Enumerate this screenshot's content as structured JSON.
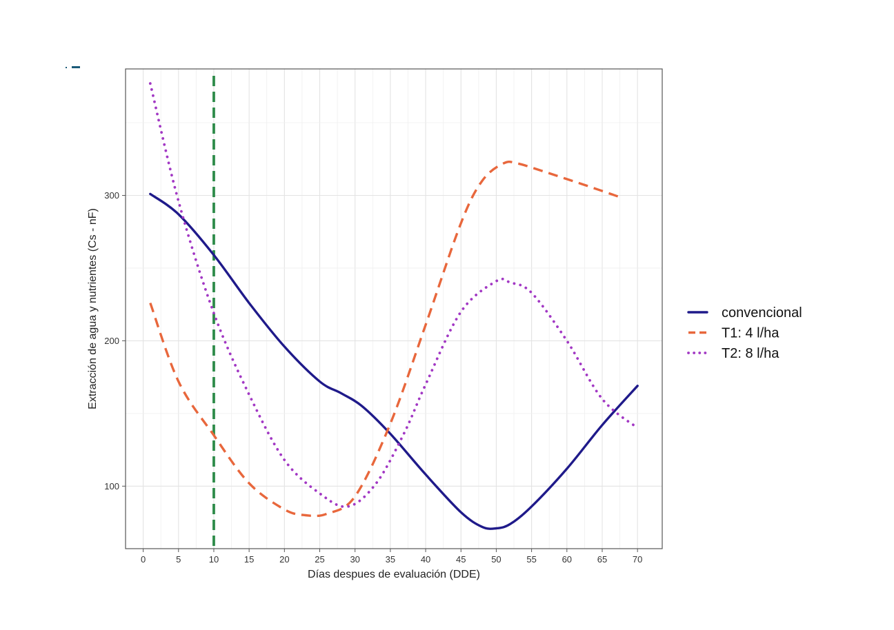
{
  "chart_data": {
    "type": "line",
    "title": "",
    "xlabel": "Días despues de evaluación (DDE)",
    "ylabel": "Extracción de agua y nutrientes (Cs - nF)",
    "xlim": [
      -2.5,
      73.5
    ],
    "ylim": [
      57,
      387
    ],
    "x_ticks": [
      0,
      5,
      10,
      15,
      20,
      25,
      30,
      35,
      40,
      45,
      50,
      55,
      60,
      65,
      70
    ],
    "y_ticks": [
      100,
      200,
      300
    ],
    "grid": true,
    "legend_position": "right",
    "vline": {
      "x": 10,
      "color": "#2e8b4a",
      "style": "dashed"
    },
    "series": [
      {
        "name": "convencional",
        "color": "#1f1a8a",
        "style": "solid",
        "points": [
          [
            1,
            301
          ],
          [
            5,
            287
          ],
          [
            10,
            259
          ],
          [
            15,
            226
          ],
          [
            20,
            196
          ],
          [
            25,
            172
          ],
          [
            28,
            164
          ],
          [
            31,
            155
          ],
          [
            35,
            136
          ],
          [
            40,
            108
          ],
          [
            45,
            82
          ],
          [
            48,
            72
          ],
          [
            50,
            71
          ],
          [
            52,
            74
          ],
          [
            55,
            86
          ],
          [
            60,
            112
          ],
          [
            65,
            142
          ],
          [
            70,
            169
          ]
        ]
      },
      {
        "name": "T1: 4 l/ha",
        "color": "#e8673c",
        "style": "dashed",
        "points": [
          [
            1,
            226
          ],
          [
            5,
            172
          ],
          [
            10,
            135
          ],
          [
            15,
            102
          ],
          [
            20,
            84
          ],
          [
            23,
            80
          ],
          [
            26,
            81
          ],
          [
            30,
            93
          ],
          [
            35,
            143
          ],
          [
            40,
            211
          ],
          [
            45,
            281
          ],
          [
            48,
            310
          ],
          [
            51,
            322
          ],
          [
            53,
            322
          ],
          [
            57,
            316
          ],
          [
            62,
            308
          ],
          [
            68,
            298
          ]
        ]
      },
      {
        "name": "T2: 8 l/ha",
        "color": "#a238c4",
        "style": "dotted",
        "points": [
          [
            1,
            377
          ],
          [
            5,
            296
          ],
          [
            10,
            219
          ],
          [
            15,
            163
          ],
          [
            20,
            118
          ],
          [
            25,
            95
          ],
          [
            29,
            86
          ],
          [
            33,
            102
          ],
          [
            37,
            137
          ],
          [
            40,
            170
          ],
          [
            45,
            220
          ],
          [
            50,
            241
          ],
          [
            52,
            240
          ],
          [
            55,
            233
          ],
          [
            60,
            200
          ],
          [
            65,
            160
          ],
          [
            70,
            140
          ]
        ]
      }
    ]
  }
}
